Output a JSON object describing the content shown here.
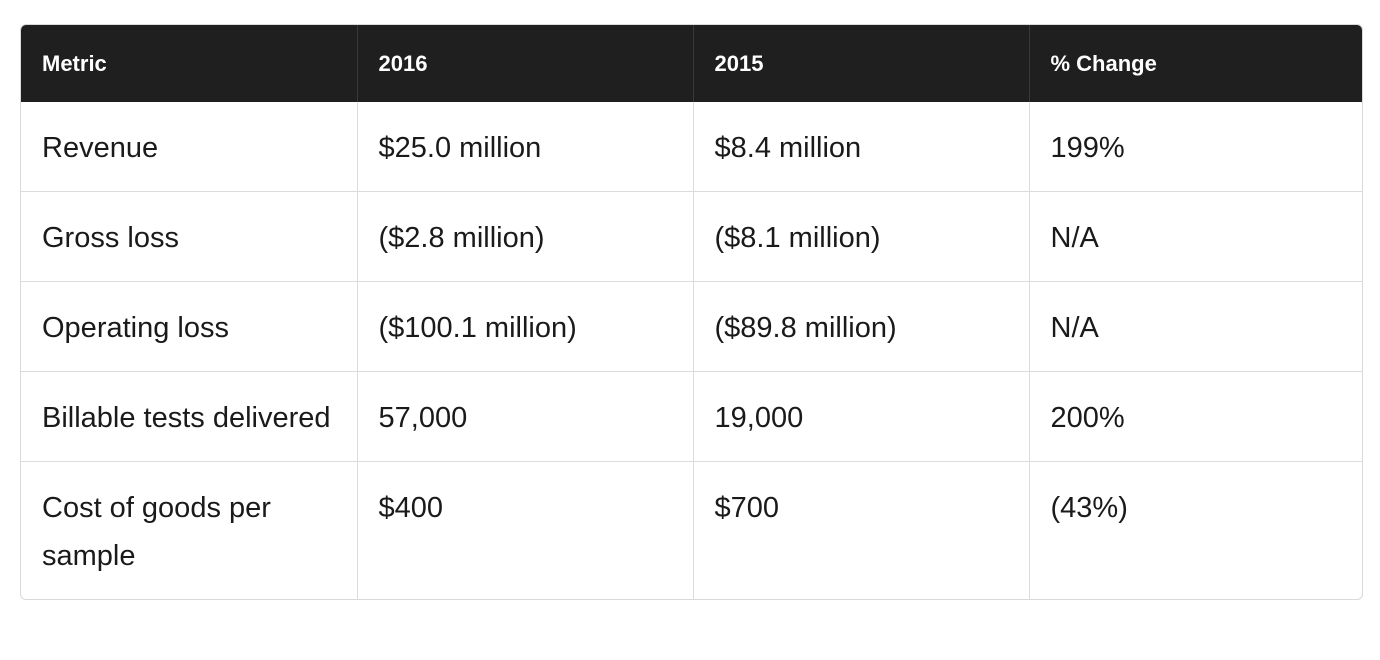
{
  "table": {
    "headers": [
      "Metric",
      "2016",
      "2015",
      "% Change"
    ],
    "rows": [
      [
        "Revenue",
        "$25.0 million",
        "$8.4 million",
        "199%"
      ],
      [
        "Gross loss",
        "($2.8 million)",
        "($8.1 million)",
        "N/A"
      ],
      [
        "Operating loss",
        "($100.1 million)",
        "($89.8 million)",
        "N/A"
      ],
      [
        "Billable tests delivered",
        "57,000",
        "19,000",
        "200%"
      ],
      [
        "Cost of goods per sample",
        "$400",
        "$700",
        "(43%)"
      ]
    ]
  },
  "colors": {
    "header_bg": "#1f1f1f",
    "header_text": "#ffffff",
    "border": "#dcdcdc",
    "body_text": "#1a1a1a"
  }
}
